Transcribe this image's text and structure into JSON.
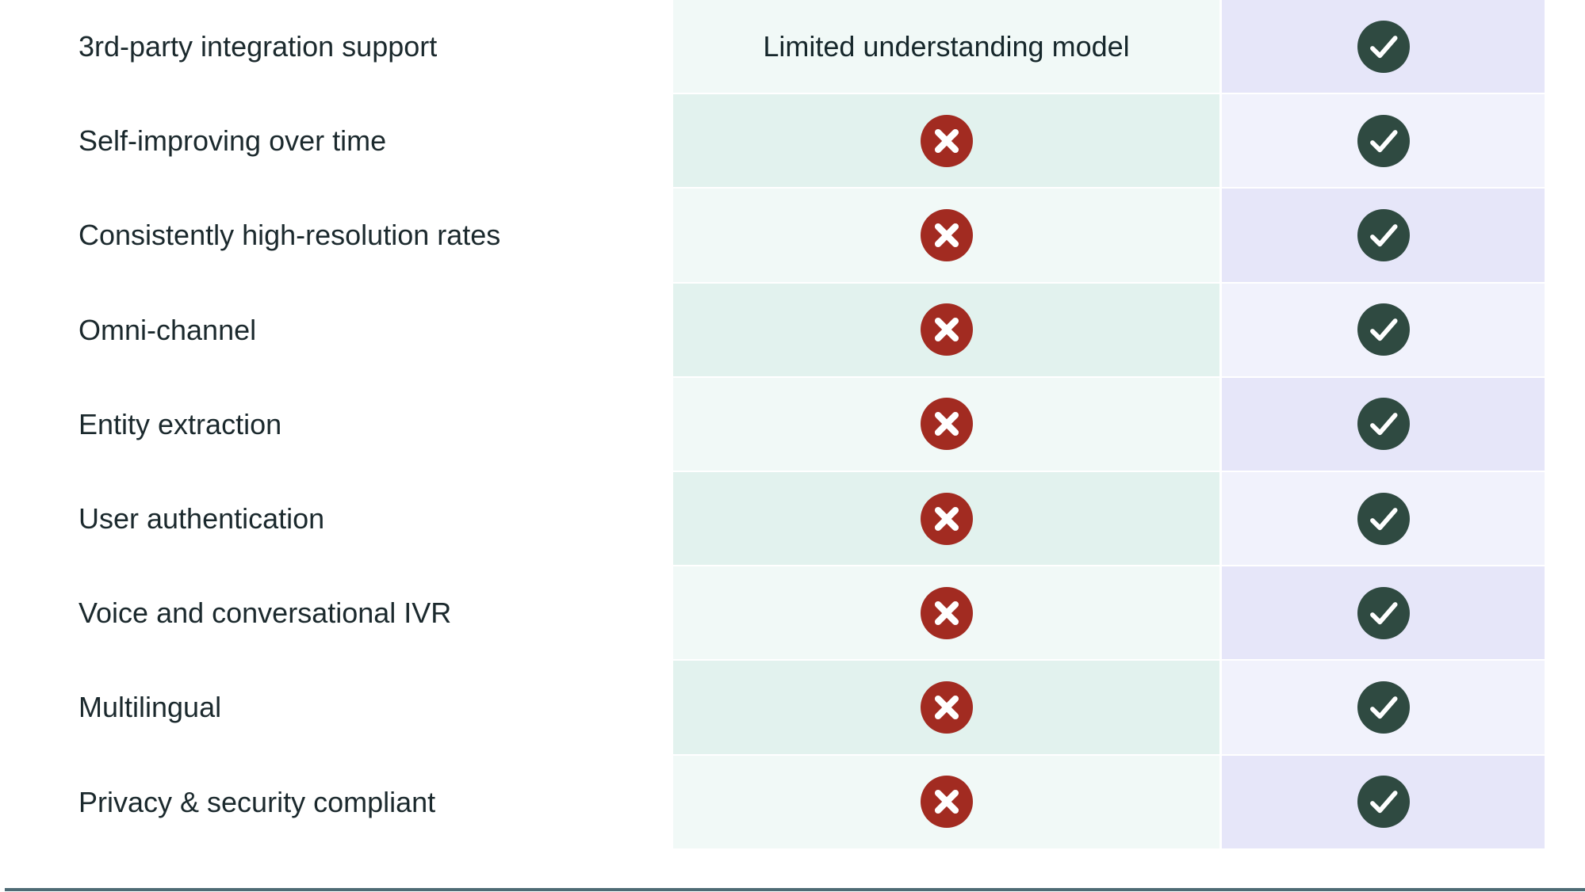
{
  "colors": {
    "page_bg": "#ffffff",
    "label_text": "#1b292d",
    "note_text": "#16272b",
    "mint_light": "#f1f9f7",
    "mint_dark": "#e2f2ee",
    "lavender_dark": "#e6e6f9",
    "lavender_light": "#f1f2fc",
    "cross_bg": "#a22b21",
    "check_bg": "#2f4a41",
    "icon_glyph": "#ffffff",
    "bottom_rule": "#4e6b75"
  },
  "table": {
    "rows": [
      {
        "feature": "3rd-party integration support",
        "competitor": {
          "type": "text",
          "text": "Limited understanding model"
        },
        "product": {
          "type": "check"
        }
      },
      {
        "feature": "Self-improving over time",
        "competitor": {
          "type": "cross"
        },
        "product": {
          "type": "check"
        }
      },
      {
        "feature": "Consistently high-resolution rates",
        "competitor": {
          "type": "cross"
        },
        "product": {
          "type": "check"
        }
      },
      {
        "feature": "Omni-channel",
        "competitor": {
          "type": "cross"
        },
        "product": {
          "type": "check"
        }
      },
      {
        "feature": "Entity extraction",
        "competitor": {
          "type": "cross"
        },
        "product": {
          "type": "check"
        }
      },
      {
        "feature": "User authentication",
        "competitor": {
          "type": "cross"
        },
        "product": {
          "type": "check"
        }
      },
      {
        "feature": "Voice and conversational IVR",
        "competitor": {
          "type": "cross"
        },
        "product": {
          "type": "check"
        }
      },
      {
        "feature": "Multilingual",
        "competitor": {
          "type": "cross"
        },
        "product": {
          "type": "check"
        }
      },
      {
        "feature": "Privacy & security compliant",
        "competitor": {
          "type": "cross"
        },
        "product": {
          "type": "check"
        }
      }
    ]
  }
}
